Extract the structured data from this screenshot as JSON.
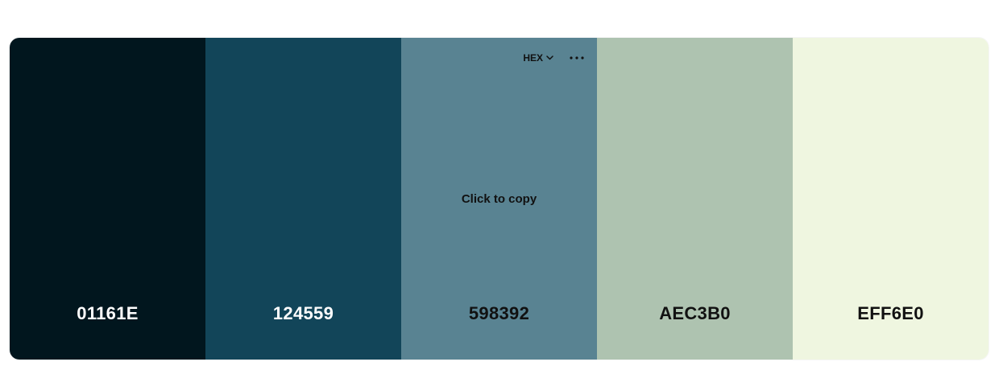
{
  "swatches": [
    {
      "hex": "01161E",
      "color": "#01161E",
      "tone": "dark"
    },
    {
      "hex": "124559",
      "color": "#124559",
      "tone": "dark"
    },
    {
      "hex": "598392",
      "color": "#598392",
      "tone": "light"
    },
    {
      "hex": "AEC3B0",
      "color": "#AEC3B0",
      "tone": "light"
    },
    {
      "hex": "EFF6E0",
      "color": "#EFF6E0",
      "tone": "light"
    }
  ],
  "hovered_swatch": {
    "format_label": "HEX",
    "format_icon": "chevron-down-icon",
    "more_icon": "more-horizontal-icon",
    "copy_hint": "Click to copy"
  }
}
